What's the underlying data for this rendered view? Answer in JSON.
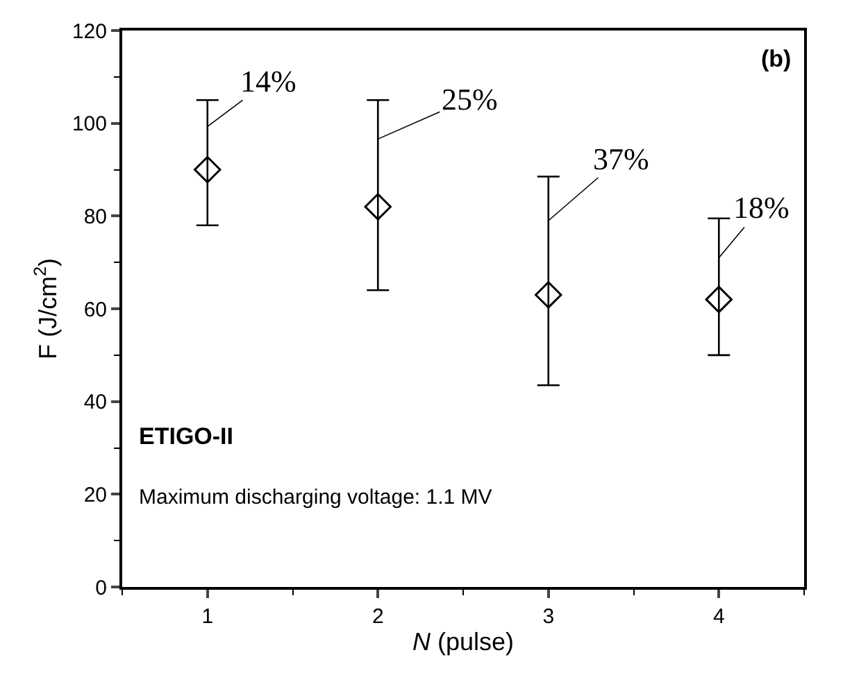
{
  "chart_data": {
    "type": "scatter",
    "xlabel": "N (pulse)",
    "ylabel": "F (J/cm$^{2}$)",
    "x": [
      1,
      2,
      3,
      4
    ],
    "series": [
      {
        "color": "#000000",
        "values": [
          90,
          82,
          63,
          62
        ],
        "errors": [
          [
            78,
            105
          ],
          [
            64,
            105
          ],
          [
            43.5,
            88.5
          ],
          [
            50,
            79.5
          ]
        ]
      }
    ],
    "xlim": [
      0.5,
      4.5
    ],
    "xticks": [
      1,
      2,
      3,
      4
    ],
    "ylim": [
      0,
      120
    ],
    "yticks": [
      0,
      20,
      40,
      60,
      80,
      100,
      120
    ],
    "marker": "diamond",
    "legend": false,
    "annotations": [
      {
        "text": "14%",
        "x": 1,
        "y": 99.3
      },
      {
        "text": "25%",
        "x": 2,
        "y": 96.6
      },
      {
        "text": "37%",
        "x": 3,
        "y": 79
      },
      {
        "text": "18%",
        "x": 4,
        "y": 71
      },
      "(b)",
      "ETIGO-II",
      "Maximum discharging voltage: 1.1 MV"
    ]
  }
}
